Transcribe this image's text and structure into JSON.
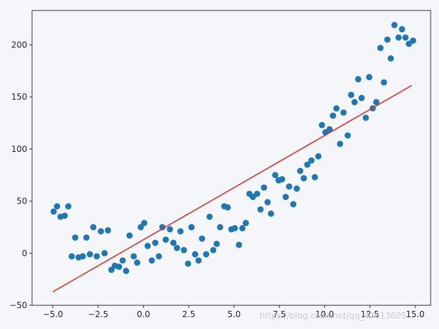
{
  "chart_data": {
    "type": "scatter",
    "xlim": [
      -6.15,
      15.85
    ],
    "ylim": [
      -50,
      233
    ],
    "xticks": [
      {
        "value": -5,
        "label": "−5.0"
      },
      {
        "value": -2.5,
        "label": "−2.5"
      },
      {
        "value": 0,
        "label": "0.0"
      },
      {
        "value": 2.5,
        "label": "2.5"
      },
      {
        "value": 5,
        "label": "5.0"
      },
      {
        "value": 7.5,
        "label": "7.5"
      },
      {
        "value": 10,
        "label": "10.0"
      },
      {
        "value": 12.5,
        "label": "12.5"
      },
      {
        "value": 15,
        "label": "15.0"
      }
    ],
    "yticks": [
      {
        "value": -50,
        "label": "−50"
      },
      0,
      50,
      100,
      150,
      200
    ],
    "watermark": "https://blog.csdn.net/qq_43613605",
    "series": [
      {
        "type": "scatter",
        "color": "#1f77b4",
        "x": [
          -4.96,
          -4.77,
          -4.58,
          -4.35,
          -4.15,
          -3.96,
          -3.77,
          -3.58,
          -3.35,
          -3.15,
          -2.96,
          -2.77,
          -2.58,
          -2.35,
          -2.15,
          -1.96,
          -1.77,
          -1.58,
          -1.35,
          -1.15,
          -0.96,
          -0.77,
          -0.54,
          -0.35,
          -0.15,
          0.04,
          0.23,
          0.46,
          0.65,
          0.85,
          1.04,
          1.23,
          1.46,
          1.65,
          1.85,
          2.04,
          2.23,
          2.46,
          2.65,
          2.85,
          3.04,
          3.23,
          3.46,
          3.65,
          3.85,
          4.04,
          4.23,
          4.46,
          4.65,
          4.85,
          5.04,
          5.27,
          5.46,
          5.65,
          5.85,
          6.04,
          6.27,
          6.46,
          6.65,
          6.85,
          7.04,
          7.27,
          7.46,
          7.65,
          7.85,
          8.04,
          8.27,
          8.46,
          8.65,
          8.85,
          9.04,
          9.27,
          9.46,
          9.65,
          9.85,
          10.04,
          10.27,
          10.46,
          10.65,
          10.85,
          11.04,
          11.27,
          11.46,
          11.65,
          11.85,
          12.04,
          12.27,
          12.46,
          12.65,
          12.85,
          13.08,
          13.27,
          13.46,
          13.65,
          13.85,
          14.08,
          14.27,
          14.46,
          14.65,
          14.88
        ],
        "values": [
          40,
          45,
          35,
          36,
          45,
          -3,
          15,
          -4,
          -3,
          15,
          -1,
          25,
          -3,
          21,
          0,
          22,
          -16,
          -12,
          -13,
          -7,
          -17,
          17,
          -3,
          -9,
          25,
          29,
          7,
          -7,
          10,
          -3,
          25,
          13,
          23,
          10,
          5,
          21,
          3,
          -10,
          25,
          -1,
          -7,
          14,
          -1,
          35,
          3,
          9,
          25,
          45,
          44,
          23,
          24,
          8,
          24,
          29,
          57,
          54,
          57,
          42,
          63,
          49,
          38,
          75,
          70,
          71,
          54,
          64,
          47,
          62,
          79,
          72,
          85,
          89,
          73,
          93,
          123,
          116,
          119,
          132,
          139,
          105,
          135,
          113,
          152,
          145,
          167,
          149,
          130,
          169,
          139,
          145,
          197,
          164,
          205,
          187,
          219,
          207,
          215,
          207,
          201,
          204
        ]
      },
      {
        "type": "line",
        "color": "#e8302a",
        "x": [
          -5,
          14.8
        ],
        "values": [
          -37,
          161
        ]
      }
    ]
  }
}
